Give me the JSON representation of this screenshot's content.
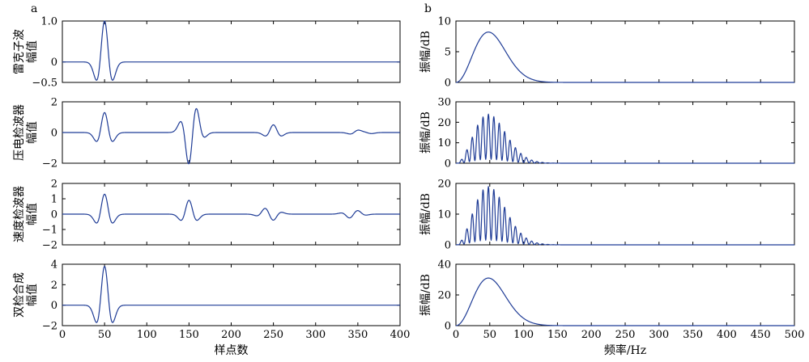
{
  "panel_letters": [
    "a",
    "b"
  ],
  "chart_data": [
    {
      "type": "line",
      "ylabel_lines": [
        "雷克子波",
        "幅值"
      ],
      "xlabel": "",
      "xlim": [
        0,
        400
      ],
      "ylim": [
        -0.5,
        1.0
      ],
      "xticks": [
        0,
        50,
        100,
        150,
        200,
        250,
        300,
        350,
        400
      ],
      "xtick_labels_shown": false,
      "yticks": [
        -0.5,
        0,
        1.0
      ],
      "ytick_labels": [
        "−0.5",
        "0",
        "1.0"
      ],
      "wavelets": [
        {
          "center": 50,
          "amplitude": 1.0
        }
      ]
    },
    {
      "type": "line",
      "ylabel_lines": [
        "压电检波器",
        "幅值"
      ],
      "xlabel": "",
      "xlim": [
        0,
        400
      ],
      "ylim": [
        -2,
        2
      ],
      "xticks": [
        0,
        50,
        100,
        150,
        200,
        250,
        300,
        350,
        400
      ],
      "xtick_labels_shown": false,
      "yticks": [
        -2,
        0,
        2
      ],
      "ytick_labels": [
        "−2",
        "0",
        "2"
      ],
      "wavelets": [
        {
          "center": 50,
          "amplitude": 1.3
        },
        {
          "center": 150,
          "amplitude": -1.7
        },
        {
          "center": 158,
          "amplitude": 0.85
        },
        {
          "center": 250,
          "amplitude": 0.5
        },
        {
          "center": 350,
          "amplitude": 0.2
        },
        {
          "center": 358,
          "amplitude": 0.12
        }
      ]
    },
    {
      "type": "line",
      "ylabel_lines": [
        "速度检波器",
        "幅值"
      ],
      "xlabel": "",
      "xlim": [
        0,
        400
      ],
      "ylim": [
        -2,
        2
      ],
      "xticks": [
        0,
        50,
        100,
        150,
        200,
        250,
        300,
        350,
        400
      ],
      "xtick_labels_shown": false,
      "yticks": [
        -2,
        -1,
        0,
        1,
        2
      ],
      "ytick_labels": [
        "−2",
        "−1",
        "0",
        "1",
        "2"
      ],
      "wavelets": [
        {
          "center": 50,
          "amplitude": 1.3
        },
        {
          "center": 150,
          "amplitude": 0.9
        },
        {
          "center": 240,
          "amplitude": 0.25
        },
        {
          "center": 250,
          "amplitude": -0.28
        },
        {
          "center": 340,
          "amplitude": -0.18
        },
        {
          "center": 350,
          "amplitude": 0.15
        }
      ]
    },
    {
      "type": "line",
      "ylabel_lines": [
        "双检合成",
        "幅值"
      ],
      "xlabel": "样点数",
      "xlim": [
        0,
        400
      ],
      "ylim": [
        -2,
        4
      ],
      "xticks": [
        0,
        50,
        100,
        150,
        200,
        250,
        300,
        350,
        400
      ],
      "xtick_labels_shown": true,
      "yticks": [
        -2,
        0,
        2,
        4
      ],
      "ytick_labels": [
        "−2",
        "0",
        "2",
        "4"
      ],
      "wavelets": [
        {
          "center": 50,
          "amplitude": 3.8
        }
      ]
    },
    {
      "type": "line",
      "ylabel_lines": [
        "振幅/dB"
      ],
      "xlabel": "",
      "xlim": [
        0,
        500
      ],
      "ylim": [
        0,
        10
      ],
      "xticks": [
        0,
        50,
        100,
        150,
        200,
        250,
        300,
        350,
        400,
        450,
        500
      ],
      "xtick_labels_shown": false,
      "yticks": [
        0,
        5,
        10
      ],
      "ytick_labels": [
        "0",
        "5",
        "10"
      ],
      "spectrum": {
        "peak_hz": 48,
        "peak_db": 8.2,
        "comb_period_hz": 0
      }
    },
    {
      "type": "line",
      "ylabel_lines": [
        "振幅/dB"
      ],
      "xlabel": "",
      "xlim": [
        0,
        500
      ],
      "ylim": [
        0,
        30
      ],
      "xticks": [
        0,
        50,
        100,
        150,
        200,
        250,
        300,
        350,
        400,
        450,
        500
      ],
      "xtick_labels_shown": false,
      "yticks": [
        0,
        10,
        20,
        30
      ],
      "ytick_labels": [
        "0",
        "10",
        "20",
        "30"
      ],
      "spectrum": {
        "peak_hz": 48,
        "peak_db": 24,
        "comb_period_hz": 8
      }
    },
    {
      "type": "line",
      "ylabel_lines": [
        "振幅/dB"
      ],
      "xlabel": "",
      "xlim": [
        0,
        500
      ],
      "ylim": [
        0,
        20
      ],
      "xticks": [
        0,
        50,
        100,
        150,
        200,
        250,
        300,
        350,
        400,
        450,
        500
      ],
      "xtick_labels_shown": false,
      "yticks": [
        0,
        10,
        20
      ],
      "ytick_labels": [
        "0",
        "10",
        "20"
      ],
      "spectrum": {
        "peak_hz": 48,
        "peak_db": 19,
        "comb_period_hz": 8
      }
    },
    {
      "type": "line",
      "ylabel_lines": [
        "振幅/dB"
      ],
      "xlabel": "频率/Hz",
      "xlim": [
        0,
        500
      ],
      "ylim": [
        0,
        40
      ],
      "xticks": [
        0,
        50,
        100,
        150,
        200,
        250,
        300,
        350,
        400,
        450,
        500
      ],
      "xtick_labels_shown": true,
      "yticks": [
        0,
        20,
        40
      ],
      "ytick_labels": [
        "0",
        "20",
        "40"
      ],
      "spectrum": {
        "peak_hz": 48,
        "peak_db": 31,
        "comb_period_hz": 0
      }
    }
  ],
  "style": {
    "line_color": "#1f3c96",
    "axis_color": "#000000"
  }
}
